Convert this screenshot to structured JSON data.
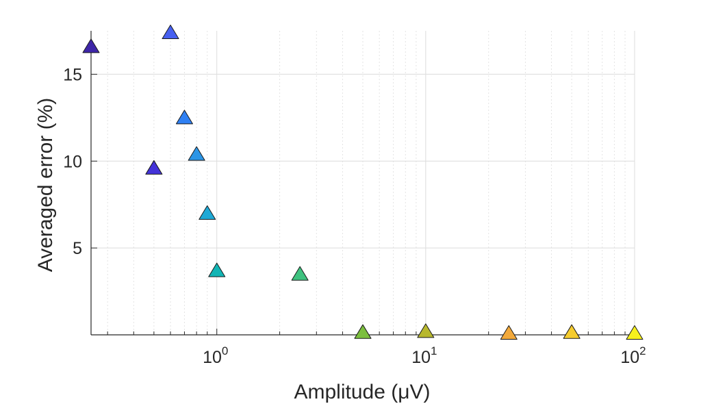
{
  "chart_data": {
    "type": "scatter",
    "title": "",
    "xlabel": "Amplitude (μV)",
    "ylabel": "Averaged error (%)",
    "x_scale": "log",
    "xlim": [
      0.25,
      100
    ],
    "ylim": [
      0,
      17.5
    ],
    "grid": true,
    "marker": "triangle",
    "x_ticks": [
      {
        "base": "10",
        "exp": "0",
        "value": 1
      },
      {
        "base": "10",
        "exp": "1",
        "value": 10
      },
      {
        "base": "10",
        "exp": "2",
        "value": 100
      }
    ],
    "y_ticks": [
      {
        "label": "5",
        "value": 5
      },
      {
        "label": "10",
        "value": 10
      },
      {
        "label": "15",
        "value": 15
      }
    ],
    "points": [
      {
        "x": 0.25,
        "y": 16.6,
        "color": "#3e26a8"
      },
      {
        "x": 0.5,
        "y": 9.6,
        "color": "#4433d8"
      },
      {
        "x": 0.6,
        "y": 17.4,
        "color": "#4760f0"
      },
      {
        "x": 0.7,
        "y": 12.5,
        "color": "#2f80f3"
      },
      {
        "x": 0.8,
        "y": 10.4,
        "color": "#2b95e6"
      },
      {
        "x": 0.9,
        "y": 7.0,
        "color": "#1ea9d6"
      },
      {
        "x": 1.0,
        "y": 3.7,
        "color": "#12b5b5"
      },
      {
        "x": 2.5,
        "y": 3.5,
        "color": "#3ec27f"
      },
      {
        "x": 5,
        "y": 0.15,
        "color": "#7cbf3e"
      },
      {
        "x": 10,
        "y": 0.2,
        "color": "#b8b82d"
      },
      {
        "x": 25,
        "y": 0.1,
        "color": "#f2a93b"
      },
      {
        "x": 50,
        "y": 0.15,
        "color": "#f5cc2f"
      },
      {
        "x": 100,
        "y": 0.1,
        "color": "#f6f01d"
      }
    ]
  }
}
